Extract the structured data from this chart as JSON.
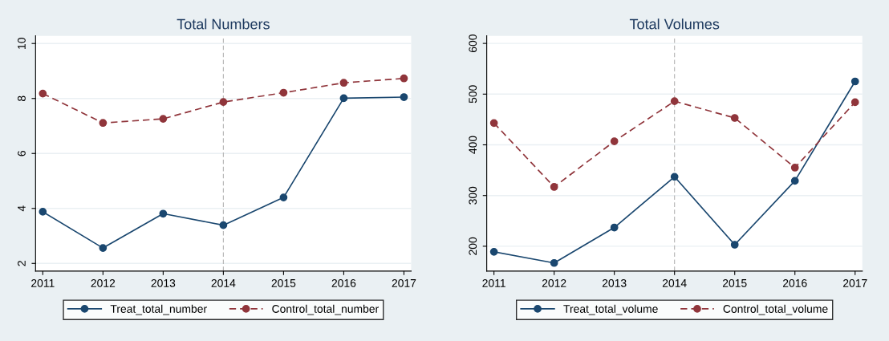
{
  "chart_data": [
    {
      "type": "line",
      "title": "Total Numbers",
      "x": [
        2011,
        2012,
        2013,
        2014,
        2015,
        2016,
        2017
      ],
      "xlim": [
        2010.88,
        2017.12
      ],
      "xticks": [
        2011,
        2012,
        2013,
        2014,
        2015,
        2016,
        2017
      ],
      "ylim": [
        1.72,
        10.28
      ],
      "yticks": [
        2,
        4,
        6,
        8,
        10
      ],
      "grid": "y",
      "legend": "bottom",
      "marker": "circle",
      "ref_lines": [
        {
          "axis": "x",
          "value": 2014,
          "color": "#b4b4b4",
          "line_style": "dashed"
        }
      ],
      "series": [
        {
          "name": "Treat_total_number",
          "color": "#1a476f",
          "line_style": "solid",
          "values": [
            3.88,
            2.56,
            3.81,
            3.39,
            4.4,
            8.01,
            8.05
          ]
        },
        {
          "name": "Control_total_number",
          "color": "#90353b",
          "line_style": "dashed",
          "values": [
            8.18,
            7.11,
            7.26,
            7.87,
            8.21,
            8.57,
            8.73
          ]
        }
      ]
    },
    {
      "type": "line",
      "title": "Total Volumes",
      "x": [
        2011,
        2012,
        2013,
        2014,
        2015,
        2016,
        2017
      ],
      "xlim": [
        2010.88,
        2017.12
      ],
      "xticks": [
        2011,
        2012,
        2013,
        2014,
        2015,
        2016,
        2017
      ],
      "ylim": [
        151,
        615
      ],
      "yticks": [
        200,
        300,
        400,
        500,
        600
      ],
      "grid": "y",
      "legend": "bottom",
      "marker": "circle",
      "ref_lines": [
        {
          "axis": "x",
          "value": 2014,
          "color": "#b4b4b4",
          "line_style": "dashed"
        }
      ],
      "series": [
        {
          "name": "Treat_total_volume",
          "color": "#1a476f",
          "line_style": "solid",
          "values": [
            189,
            167,
            237,
            337,
            203,
            329,
            525
          ]
        },
        {
          "name": "Control_total_volume",
          "color": "#90353b",
          "line_style": "dashed",
          "values": [
            443,
            317,
            407,
            486,
            453,
            355,
            484
          ]
        }
      ]
    }
  ]
}
